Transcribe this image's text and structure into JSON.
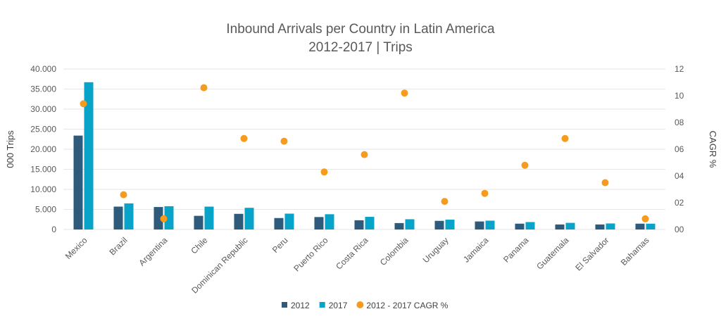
{
  "chart_data": {
    "type": "bar",
    "title": "Inbound Arrivals per Country in Latin America",
    "subtitle": "2012-2017 | Trips",
    "ylabel": "000 Trips",
    "y2label": "CAGR %",
    "ylim": [
      0,
      40000
    ],
    "y2lim": [
      0,
      12
    ],
    "yticks": [
      "40.000",
      "35.000",
      "30.000",
      "25.000",
      "20.000",
      "15.000",
      "10.000",
      "5.000",
      "0"
    ],
    "y2ticks": [
      "12",
      "10",
      "08",
      "06",
      "04",
      "02",
      "00"
    ],
    "grid": true,
    "legend_position": "bottom",
    "categories": [
      "Mexico",
      "Brazil",
      "Argentina",
      "Chile",
      "Dominican Republic",
      "Peru",
      "Puerto Rico",
      "Costa Rica",
      "Colombia",
      "Uruguay",
      "Jamaica",
      "Panama",
      "Guatemala",
      "El Salvador",
      "Bahamas"
    ],
    "series": [
      {
        "name": "2012",
        "kind": "bar",
        "axis": "left",
        "color": "#2e5b7b",
        "values": [
          23400,
          5700,
          5600,
          3400,
          3900,
          2850,
          3100,
          2300,
          1600,
          2150,
          2000,
          1450,
          1250,
          1250,
          1450
        ]
      },
      {
        "name": "2017",
        "kind": "bar",
        "axis": "left",
        "color": "#08a3c9",
        "values": [
          36700,
          6500,
          5800,
          5700,
          5400,
          3950,
          3800,
          3150,
          2550,
          2450,
          2200,
          1850,
          1650,
          1500,
          1450
        ]
      },
      {
        "name": "2012 - 2017 CAGR %",
        "kind": "scatter",
        "axis": "right",
        "color": "#f59b1e",
        "values": [
          9.4,
          2.6,
          0.8,
          10.6,
          6.8,
          6.6,
          4.3,
          5.6,
          10.2,
          2.1,
          2.7,
          4.8,
          6.8,
          3.5,
          0.8
        ]
      }
    ]
  }
}
